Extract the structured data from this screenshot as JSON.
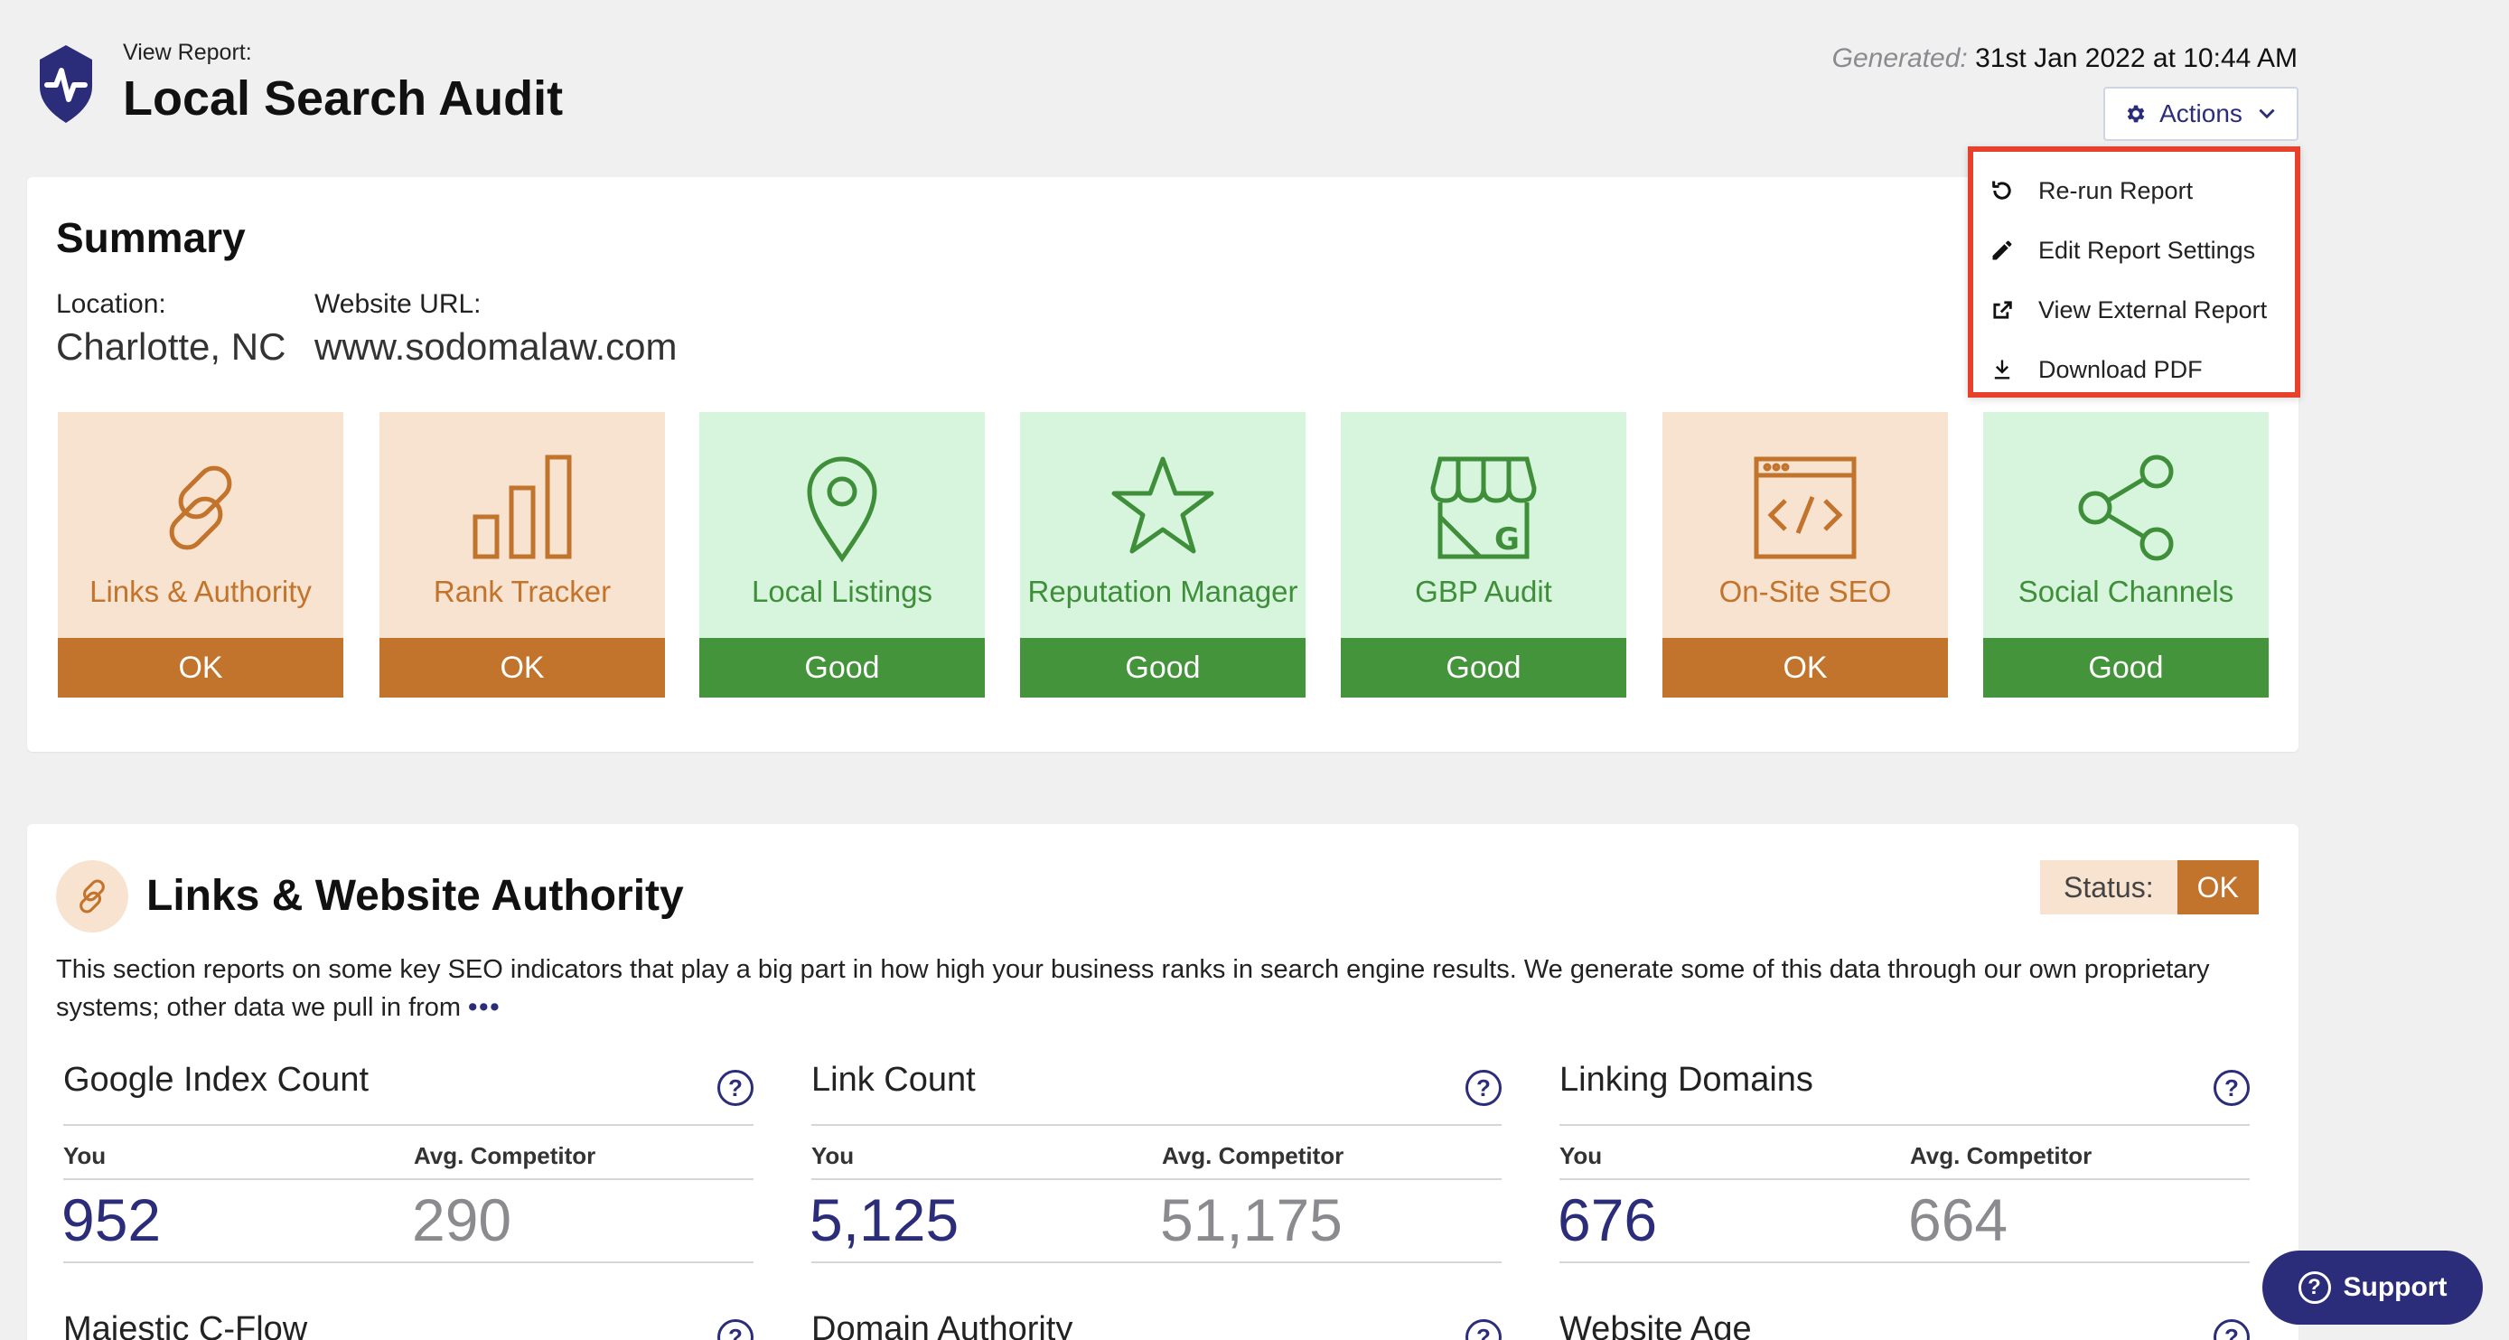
{
  "header": {
    "view_label": "View Report:",
    "title": "Local Search Audit",
    "generated_label": "Generated:",
    "generated_value": "31st Jan 2022 at 10:44 AM",
    "actions_label": "Actions"
  },
  "actions_menu": {
    "items": [
      {
        "label": "Re-run Report",
        "icon": "rerun-icon"
      },
      {
        "label": "Edit Report Settings",
        "icon": "pencil-icon"
      },
      {
        "label": "View External Report",
        "icon": "external-icon"
      },
      {
        "label": "Download PDF",
        "icon": "download-icon"
      }
    ]
  },
  "summary": {
    "title": "Summary",
    "location_label": "Location:",
    "location_value": "Charlotte, NC",
    "url_label": "Website URL:",
    "url_value": "www.sodomalaw.com",
    "tiles": [
      {
        "label": "Links & Authority",
        "status": "OK",
        "icon": "links-icon"
      },
      {
        "label": "Rank Tracker",
        "status": "OK",
        "icon": "bar-chart-icon"
      },
      {
        "label": "Local Listings",
        "status": "Good",
        "icon": "map-pin-icon"
      },
      {
        "label": "Reputation Manager",
        "status": "Good",
        "icon": "star-icon"
      },
      {
        "label": "GBP Audit",
        "status": "Good",
        "icon": "storefront-icon"
      },
      {
        "label": "On-Site SEO",
        "status": "OK",
        "icon": "code-window-icon"
      },
      {
        "label": "Social Channels",
        "status": "Good",
        "icon": "share-icon"
      }
    ]
  },
  "links_section": {
    "title": "Links & Website Authority",
    "status_label": "Status:",
    "status_value": "OK",
    "description": "This section reports on some key SEO indicators that play a big part in how high your business ranks in search engine results. We generate some of this data through our own proprietary systems; other data we pull in from",
    "more": "•••",
    "you_label": "You",
    "competitor_label": "Avg. Competitor",
    "metrics": [
      {
        "title": "Google Index Count",
        "you": "952",
        "competitor": "290"
      },
      {
        "title": "Link Count",
        "you": "5,125",
        "competitor": "51,175"
      },
      {
        "title": "Linking Domains",
        "you": "676",
        "competitor": "664"
      }
    ],
    "metrics_row2": [
      {
        "title": "Majestic C-Flow"
      },
      {
        "title": "Domain Authority"
      },
      {
        "title": "Website Age"
      }
    ]
  },
  "support": {
    "label": "Support"
  },
  "colors": {
    "ok": "#c3742c",
    "good": "#44943b",
    "brand": "#2c2d7a",
    "highlight": "#e8412b"
  }
}
